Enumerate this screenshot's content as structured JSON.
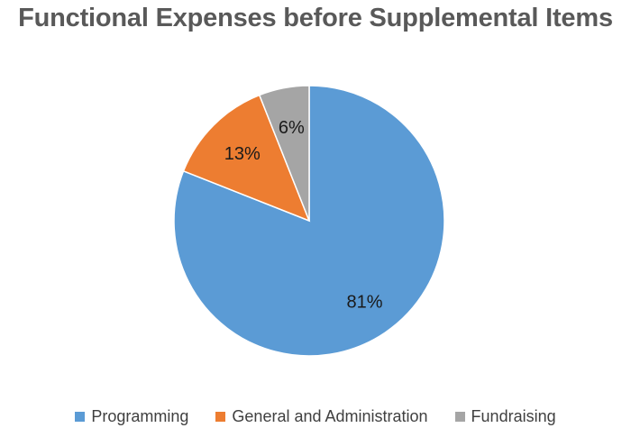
{
  "chart_data": {
    "type": "pie",
    "title": "Functional Expenses before Supplemental Items",
    "categories": [
      "Programming",
      "General and Administration",
      "Fundraising"
    ],
    "values": [
      81,
      13,
      6
    ],
    "labels": [
      "81%",
      "13%",
      "6%"
    ],
    "colors": [
      "#5b9bd5",
      "#ed7d31",
      "#a5a5a5"
    ],
    "legend_position": "bottom",
    "start_angle": "top, clockwise"
  }
}
